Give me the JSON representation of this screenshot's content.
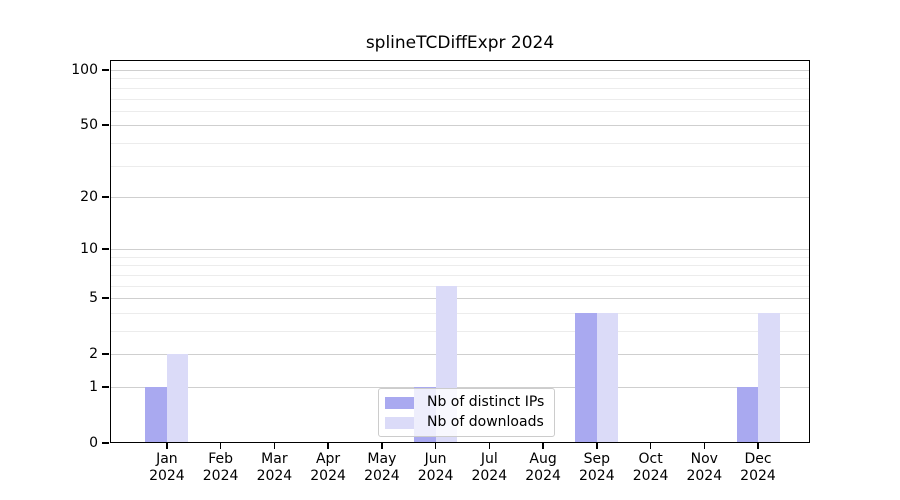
{
  "chart_data": {
    "type": "bar",
    "title": "splineTCDiffExpr 2024",
    "categories": [
      "Jan",
      "Feb",
      "Mar",
      "Apr",
      "May",
      "Jun",
      "Jul",
      "Aug",
      "Sep",
      "Oct",
      "Nov",
      "Dec"
    ],
    "year_label": "2024",
    "series": [
      {
        "name": "Nb of distinct IPs",
        "color": "#a9a9f0",
        "values": [
          1,
          0,
          0,
          0,
          0,
          1,
          0,
          0,
          4,
          0,
          0,
          1
        ]
      },
      {
        "name": "Nb of downloads",
        "color": "#dbdbf8",
        "values": [
          2,
          0,
          0,
          0,
          0,
          6,
          0,
          0,
          4,
          0,
          0,
          4
        ]
      }
    ],
    "y_axis": {
      "scale": "log1p",
      "ticks": [
        0,
        1,
        2,
        5,
        10,
        20,
        50,
        100
      ],
      "minor_gridlines": [
        3,
        4,
        6,
        7,
        8,
        9,
        30,
        40,
        60,
        70,
        80,
        90
      ],
      "range_top": 113
    },
    "x_axis": {
      "tick_label_lines": 2
    },
    "legend": {
      "position": "lower-center",
      "frame": true
    },
    "grid": true,
    "colors": {
      "grid_major": "#cfcfcf",
      "grid_minor": "#ececec",
      "axis": "#000000"
    }
  }
}
